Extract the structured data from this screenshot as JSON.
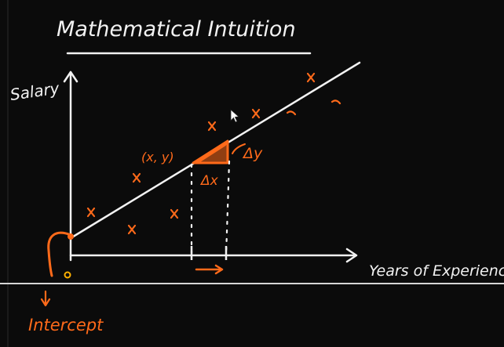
{
  "board": {
    "title": "Mathematical Intuition",
    "y_axis_label": "Salary",
    "x_axis_label": "Years of Experience",
    "point_label": "(x, y)",
    "delta_x_label": "Δx",
    "delta_y_label": "Δy",
    "intercept_label": "Intercept"
  },
  "colors": {
    "background": "#0b0b0b",
    "ink_white": "#f2f2f2",
    "ink_orange": "#ff6a1a",
    "grid_line": "#d6d6d6"
  },
  "icons": [
    "cursor-arrow-icon"
  ]
}
